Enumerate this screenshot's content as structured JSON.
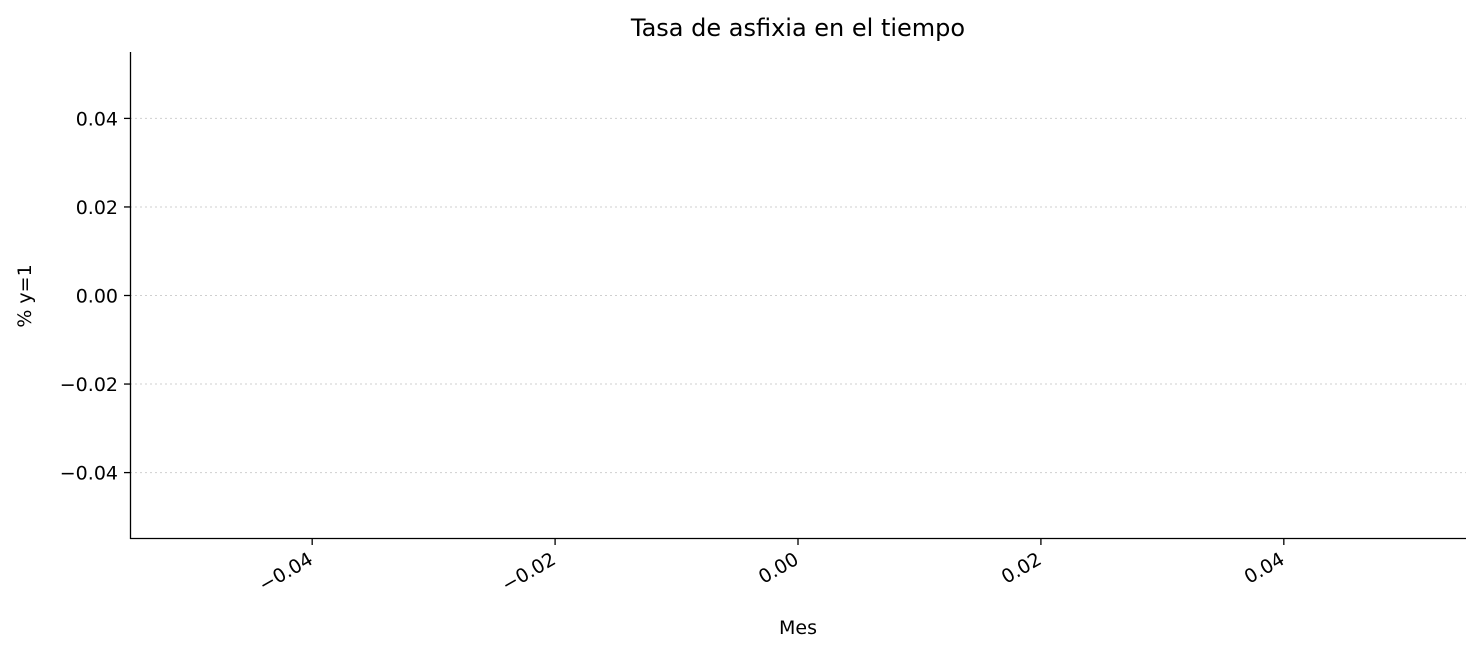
{
  "chart_data": {
    "type": "line",
    "title": "Tasa de asfixia en el tiempo",
    "xlabel": "Mes",
    "ylabel": "% y=1",
    "x": [],
    "series": [],
    "xlim": [
      -0.055,
      0.055
    ],
    "ylim": [
      -0.055,
      0.055
    ],
    "x_ticks": [
      -0.04,
      -0.02,
      0.0,
      0.02,
      0.04
    ],
    "x_tick_labels": [
      "−0.04",
      "−0.02",
      "0.00",
      "0.02",
      "0.04"
    ],
    "y_ticks": [
      0.04,
      0.02,
      0.0,
      -0.02,
      -0.04
    ],
    "y_tick_labels": [
      "0.04",
      "0.02",
      "0.00",
      "−0.02",
      "−0.04"
    ],
    "y_grid": true,
    "x_grid": false,
    "x_tick_rotation_deg": 30
  }
}
